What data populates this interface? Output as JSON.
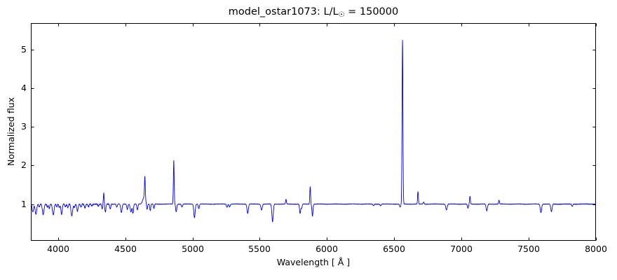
{
  "chart_data": {
    "type": "line",
    "title_parts": {
      "prefix": "model_ostar1073: L/L",
      "sun_symbol": "☉",
      "suffix": " = 150000"
    },
    "title_text": "model_ostar1073: L/L☉ = 150000",
    "xlabel": "Wavelength [ Å ]",
    "ylabel": "Normalized flux",
    "xlim": [
      3800,
      8000
    ],
    "ylim": [
      0.06,
      5.67
    ],
    "xticks": [
      4000,
      4500,
      5000,
      5500,
      6000,
      6500,
      7000,
      7500,
      8000
    ],
    "yticks": [
      1,
      2,
      3,
      4,
      5
    ],
    "grid": "off",
    "legend": "none",
    "tick_direction": "in",
    "box": "on",
    "line_color": "#0000ff",
    "axis_color": "#000000",
    "background_color": "#ffffff",
    "baseline_flux": 1.0,
    "noise_regions": [
      {
        "from": 3800,
        "to": 4400,
        "amplitude": 0.015
      },
      {
        "from": 4400,
        "to": 7700,
        "amplitude": 0.005
      },
      {
        "from": 7700,
        "to": 8000,
        "amplitude": 0.007
      }
    ],
    "features": [
      {
        "kind": "absorption",
        "wavelength": 3812,
        "flux": 0.8,
        "width": 5
      },
      {
        "kind": "absorption",
        "wavelength": 3835,
        "flux": 0.74,
        "width": 6
      },
      {
        "kind": "absorption",
        "wavelength": 3860,
        "flux": 0.92,
        "width": 4
      },
      {
        "kind": "absorption",
        "wavelength": 3889,
        "flux": 0.73,
        "width": 6
      },
      {
        "kind": "absorption",
        "wavelength": 3920,
        "flux": 0.93,
        "width": 4
      },
      {
        "kind": "absorption",
        "wavelength": 3934,
        "flux": 0.89,
        "width": 4
      },
      {
        "kind": "absorption",
        "wavelength": 3964,
        "flux": 0.72,
        "width": 6
      },
      {
        "kind": "absorption",
        "wavelength": 3990,
        "flux": 0.93,
        "width": 4
      },
      {
        "kind": "absorption",
        "wavelength": 4009,
        "flux": 0.91,
        "width": 4
      },
      {
        "kind": "absorption",
        "wavelength": 4026,
        "flux": 0.74,
        "width": 5
      },
      {
        "kind": "absorption",
        "wavelength": 4055,
        "flux": 0.93,
        "width": 4
      },
      {
        "kind": "absorption",
        "wavelength": 4072,
        "flux": 0.9,
        "width": 4
      },
      {
        "kind": "absorption",
        "wavelength": 4102,
        "flux": 0.7,
        "width": 6
      },
      {
        "kind": "absorption",
        "wavelength": 4121,
        "flux": 0.91,
        "width": 4
      },
      {
        "kind": "absorption",
        "wavelength": 4144,
        "flux": 0.82,
        "width": 5
      },
      {
        "kind": "absorption",
        "wavelength": 4170,
        "flux": 0.93,
        "width": 4
      },
      {
        "kind": "absorption",
        "wavelength": 4200,
        "flux": 0.9,
        "width": 5
      },
      {
        "kind": "absorption",
        "wavelength": 4227,
        "flux": 0.93,
        "width": 4
      },
      {
        "kind": "absorption",
        "wavelength": 4252,
        "flux": 0.95,
        "width": 4
      },
      {
        "kind": "absorption",
        "wavelength": 4300,
        "flux": 0.95,
        "width": 4
      },
      {
        "kind": "absorption",
        "wavelength": 4328,
        "flux": 0.88,
        "width": 4
      },
      {
        "kind": "emission",
        "wavelength": 4340,
        "flux": 1.28,
        "width": 3
      },
      {
        "kind": "absorption",
        "wavelength": 4352,
        "flux": 0.8,
        "width": 4
      },
      {
        "kind": "absorption",
        "wavelength": 4388,
        "flux": 0.87,
        "width": 4
      },
      {
        "kind": "absorption",
        "wavelength": 4437,
        "flux": 0.92,
        "width": 4
      },
      {
        "kind": "absorption",
        "wavelength": 4471,
        "flux": 0.78,
        "width": 5
      },
      {
        "kind": "absorption",
        "wavelength": 4515,
        "flux": 0.86,
        "width": 4
      },
      {
        "kind": "absorption",
        "wavelength": 4542,
        "flux": 0.8,
        "width": 5
      },
      {
        "kind": "absorption",
        "wavelength": 4557,
        "flux": 0.76,
        "width": 4
      },
      {
        "kind": "absorption",
        "wavelength": 4590,
        "flux": 0.85,
        "width": 4
      },
      {
        "kind": "emission_pedestal",
        "wavelength": 4640,
        "flux": 1.18,
        "width": 10
      },
      {
        "kind": "emission",
        "wavelength": 4646,
        "flux": 1.57,
        "width": 3
      },
      {
        "kind": "absorption",
        "wavelength": 4662,
        "flux": 0.85,
        "width": 3.5
      },
      {
        "kind": "absorption",
        "wavelength": 4686,
        "flux": 0.83,
        "width": 3.5
      },
      {
        "kind": "absorption",
        "wavelength": 4713,
        "flux": 0.88,
        "width": 3.5
      },
      {
        "kind": "emission",
        "wavelength": 4861,
        "flux": 2.13,
        "width": 3
      },
      {
        "kind": "absorption",
        "wavelength": 4879,
        "flux": 0.8,
        "width": 4
      },
      {
        "kind": "absorption",
        "wavelength": 4922,
        "flux": 0.92,
        "width": 4
      },
      {
        "kind": "absorption",
        "wavelength": 5015,
        "flux": 0.65,
        "width": 5
      },
      {
        "kind": "absorption",
        "wavelength": 5047,
        "flux": 0.88,
        "width": 4
      },
      {
        "kind": "absorption",
        "wavelength": 5257,
        "flux": 0.92,
        "width": 4
      },
      {
        "kind": "absorption",
        "wavelength": 5276,
        "flux": 0.93,
        "width": 4
      },
      {
        "kind": "absorption",
        "wavelength": 5411,
        "flux": 0.76,
        "width": 5
      },
      {
        "kind": "absorption",
        "wavelength": 5514,
        "flux": 0.85,
        "width": 5
      },
      {
        "kind": "absorption",
        "wavelength": 5596,
        "flux": 0.54,
        "width": 5
      },
      {
        "kind": "emission",
        "wavelength": 5696,
        "flux": 1.12,
        "width": 3
      },
      {
        "kind": "absorption",
        "wavelength": 5801,
        "flux": 0.76,
        "width": 4
      },
      {
        "kind": "absorption",
        "wavelength": 5812,
        "flux": 0.89,
        "width": 4
      },
      {
        "kind": "emission",
        "wavelength": 5876,
        "flux": 1.45,
        "width": 3
      },
      {
        "kind": "absorption",
        "wavelength": 5893,
        "flux": 0.69,
        "width": 4
      },
      {
        "kind": "absorption",
        "wavelength": 6347,
        "flux": 0.96,
        "width": 4
      },
      {
        "kind": "absorption",
        "wavelength": 6400,
        "flux": 0.96,
        "width": 4
      },
      {
        "kind": "absorption",
        "wavelength": 6545,
        "flux": 0.92,
        "width": 4
      },
      {
        "kind": "emission",
        "wavelength": 6563,
        "flux": 5.23,
        "width": 3.2
      },
      {
        "kind": "emission",
        "wavelength": 6678,
        "flux": 1.32,
        "width": 3
      },
      {
        "kind": "emission",
        "wavelength": 6720,
        "flux": 1.05,
        "width": 4
      },
      {
        "kind": "absorption",
        "wavelength": 6890,
        "flux": 0.85,
        "width": 5
      },
      {
        "kind": "absorption",
        "wavelength": 7050,
        "flux": 0.89,
        "width": 4
      },
      {
        "kind": "emission",
        "wavelength": 7065,
        "flux": 1.2,
        "width": 3
      },
      {
        "kind": "absorption",
        "wavelength": 7190,
        "flux": 0.82,
        "width": 5
      },
      {
        "kind": "emission",
        "wavelength": 7281,
        "flux": 1.1,
        "width": 3
      },
      {
        "kind": "absorption",
        "wavelength": 7593,
        "flux": 0.78,
        "width": 5
      },
      {
        "kind": "absorption",
        "wavelength": 7671,
        "flux": 0.8,
        "width": 5
      },
      {
        "kind": "absorption",
        "wavelength": 7826,
        "flux": 0.94,
        "width": 4
      }
    ]
  }
}
